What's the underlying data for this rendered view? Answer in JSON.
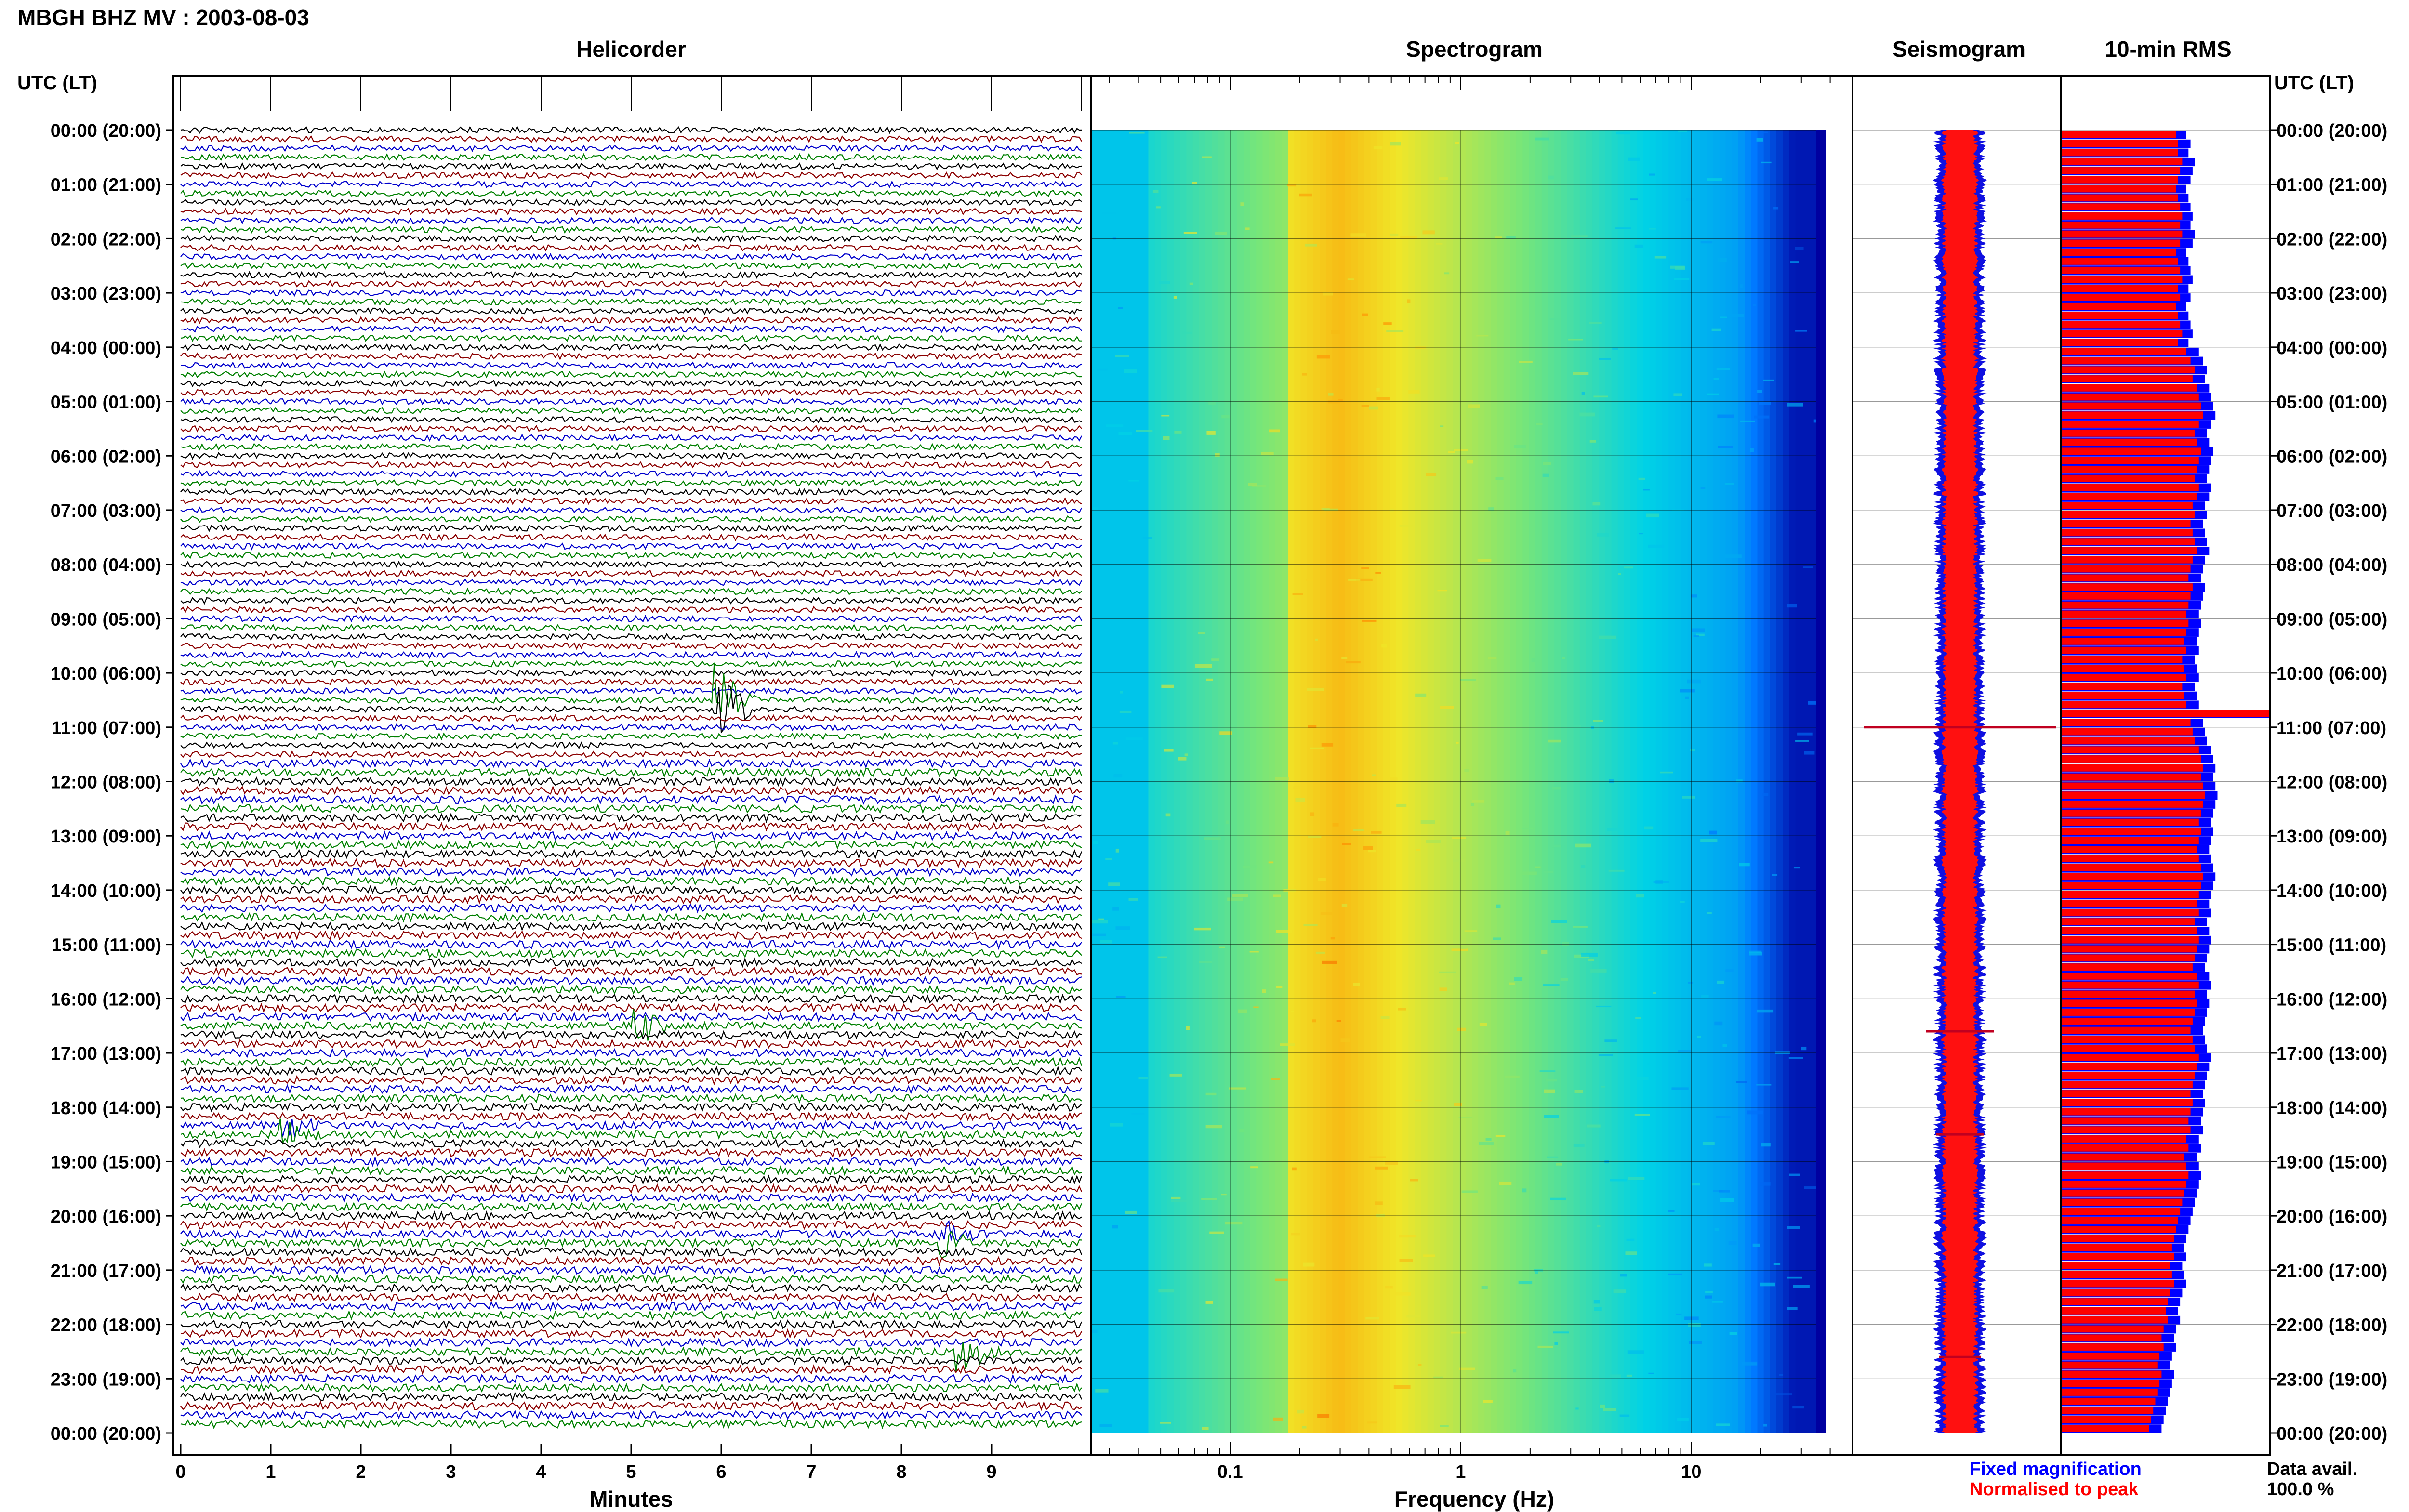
{
  "header": {
    "title": "MBGH BHZ MV : 2003-08-03",
    "utc_lt_label": "UTC (LT)"
  },
  "panels": {
    "helicorder": "Helicorder",
    "spectrogram": "Spectrogram",
    "seismogram": "Seismogram",
    "rms": "10-min RMS"
  },
  "colors": {
    "helicorder_lines": [
      "#000000",
      "#8b0000",
      "#0000cc",
      "#008000"
    ],
    "rms_fixed": "#0000ff",
    "rms_normalised": "#ff0000"
  },
  "legend": {
    "fixed": "Fixed magnification",
    "normalised": "Normalised to peak",
    "avail_label": "Data avail.",
    "avail_value": "100.0 %"
  },
  "chart_data": [
    {
      "type": "line",
      "panel": "helicorder",
      "xlabel": "Minutes",
      "x_ticks": [
        "0",
        "1",
        "2",
        "3",
        "4",
        "5",
        "6",
        "7",
        "8",
        "9"
      ],
      "xlim": [
        0,
        10
      ],
      "y_ticks": [
        "00:00 (20:00)",
        "01:00 (21:00)",
        "02:00 (22:00)",
        "03:00 (23:00)",
        "04:00 (00:00)",
        "05:00 (01:00)",
        "06:00 (02:00)",
        "07:00 (03:00)",
        "08:00 (04:00)",
        "09:00 (05:00)",
        "10:00 (06:00)",
        "11:00 (07:00)",
        "12:00 (08:00)",
        "13:00 (09:00)",
        "14:00 (10:00)",
        "15:00 (11:00)",
        "16:00 (12:00)",
        "17:00 (13:00)",
        "18:00 (14:00)",
        "19:00 (15:00)",
        "20:00 (16:00)",
        "21:00 (17:00)",
        "22:00 (18:00)",
        "23:00 (19:00)",
        "00:00 (20:00)"
      ],
      "traces_per_hour": 6,
      "events": [
        {
          "hour": 10.6,
          "minute": 5.9,
          "amplitude": 3.0
        },
        {
          "hour": 16.5,
          "minute": 5.0,
          "amplitude": 1.2
        },
        {
          "hour": 18.4,
          "minute": 1.1,
          "amplitude": 0.8
        },
        {
          "hour": 20.4,
          "minute": 8.4,
          "amplitude": 0.8
        },
        {
          "hour": 22.5,
          "minute": 8.6,
          "amplitude": 1.2
        }
      ]
    },
    {
      "type": "heatmap",
      "panel": "spectrogram",
      "xlabel": "Frequency (Hz)",
      "x_scale": "log",
      "x_ticks": [
        "0.1",
        "1",
        "10"
      ],
      "xlim": [
        0.025,
        50
      ],
      "peak_frequency_hz": 0.3
    },
    {
      "type": "line",
      "panel": "seismogram",
      "spikes": [
        {
          "hour": 11.0,
          "amplitude": 1.0
        },
        {
          "hour": 16.6,
          "amplitude": 0.35
        },
        {
          "hour": 18.5,
          "amplitude": 0.25
        },
        {
          "hour": 22.6,
          "amplitude": 0.22
        }
      ]
    },
    {
      "type": "bar",
      "panel": "rms",
      "series": [
        {
          "name": "Fixed magnification",
          "values": [
            0.6,
            0.62,
            0.61,
            0.64,
            0.63,
            0.62,
            0.6,
            0.61,
            0.62,
            0.63,
            0.62,
            0.64,
            0.63,
            0.6,
            0.61,
            0.62,
            0.63,
            0.61,
            0.62,
            0.6,
            0.61,
            0.62,
            0.63,
            0.61,
            0.66,
            0.68,
            0.7,
            0.69,
            0.71,
            0.72,
            0.73,
            0.74,
            0.72,
            0.7,
            0.71,
            0.73,
            0.72,
            0.71,
            0.7,
            0.72,
            0.71,
            0.69,
            0.7,
            0.68,
            0.69,
            0.7,
            0.71,
            0.69,
            0.68,
            0.67,
            0.69,
            0.68,
            0.67,
            0.66,
            0.67,
            0.66,
            0.65,
            0.66,
            0.64,
            0.65,
            0.66,
            0.64,
            0.65,
            0.66,
            1.0,
            0.68,
            0.69,
            0.7,
            0.72,
            0.73,
            0.74,
            0.73,
            0.74,
            0.75,
            0.74,
            0.73,
            0.72,
            0.73,
            0.72,
            0.71,
            0.72,
            0.73,
            0.74,
            0.73,
            0.72,
            0.71,
            0.72,
            0.7,
            0.71,
            0.72,
            0.71,
            0.7,
            0.69,
            0.71,
            0.72,
            0.7,
            0.71,
            0.7,
            0.69,
            0.68,
            0.69,
            0.7,
            0.72,
            0.71,
            0.7,
            0.69,
            0.68,
            0.69,
            0.68,
            0.67,
            0.68,
            0.66,
            0.67,
            0.65,
            0.66,
            0.67,
            0.66,
            0.65,
            0.64,
            0.63,
            0.62,
            0.61,
            0.6,
            0.59,
            0.6,
            0.58,
            0.59,
            0.6,
            0.58,
            0.57,
            0.56,
            0.57,
            0.55,
            0.54,
            0.55,
            0.53,
            0.52,
            0.54,
            0.53,
            0.52,
            0.51,
            0.5,
            0.49,
            0.48
          ]
        },
        {
          "name": "Normalised to peak",
          "values": [
            0.55,
            0.56,
            0.56,
            0.58,
            0.57,
            0.56,
            0.55,
            0.56,
            0.57,
            0.58,
            0.57,
            0.58,
            0.57,
            0.55,
            0.56,
            0.57,
            0.58,
            0.56,
            0.57,
            0.55,
            0.56,
            0.57,
            0.58,
            0.56,
            0.6,
            0.62,
            0.64,
            0.63,
            0.65,
            0.66,
            0.67,
            0.68,
            0.66,
            0.64,
            0.65,
            0.67,
            0.66,
            0.65,
            0.64,
            0.66,
            0.65,
            0.63,
            0.64,
            0.62,
            0.63,
            0.64,
            0.65,
            0.63,
            0.62,
            0.61,
            0.63,
            0.62,
            0.61,
            0.6,
            0.61,
            0.6,
            0.59,
            0.6,
            0.58,
            0.59,
            0.6,
            0.58,
            0.59,
            0.6,
            1.0,
            0.62,
            0.63,
            0.64,
            0.66,
            0.67,
            0.68,
            0.67,
            0.68,
            0.69,
            0.68,
            0.67,
            0.66,
            0.67,
            0.66,
            0.65,
            0.66,
            0.67,
            0.68,
            0.67,
            0.66,
            0.65,
            0.66,
            0.64,
            0.65,
            0.66,
            0.65,
            0.64,
            0.63,
            0.65,
            0.66,
            0.64,
            0.65,
            0.64,
            0.63,
            0.62,
            0.63,
            0.64,
            0.66,
            0.65,
            0.64,
            0.63,
            0.62,
            0.63,
            0.62,
            0.61,
            0.62,
            0.6,
            0.61,
            0.59,
            0.6,
            0.61,
            0.6,
            0.59,
            0.58,
            0.57,
            0.56,
            0.55,
            0.54,
            0.53,
            0.54,
            0.52,
            0.53,
            0.54,
            0.52,
            0.51,
            0.5,
            0.51,
            0.49,
            0.48,
            0.49,
            0.47,
            0.46,
            0.48,
            0.47,
            0.46,
            0.45,
            0.44,
            0.43,
            0.42
          ]
        }
      ]
    }
  ]
}
